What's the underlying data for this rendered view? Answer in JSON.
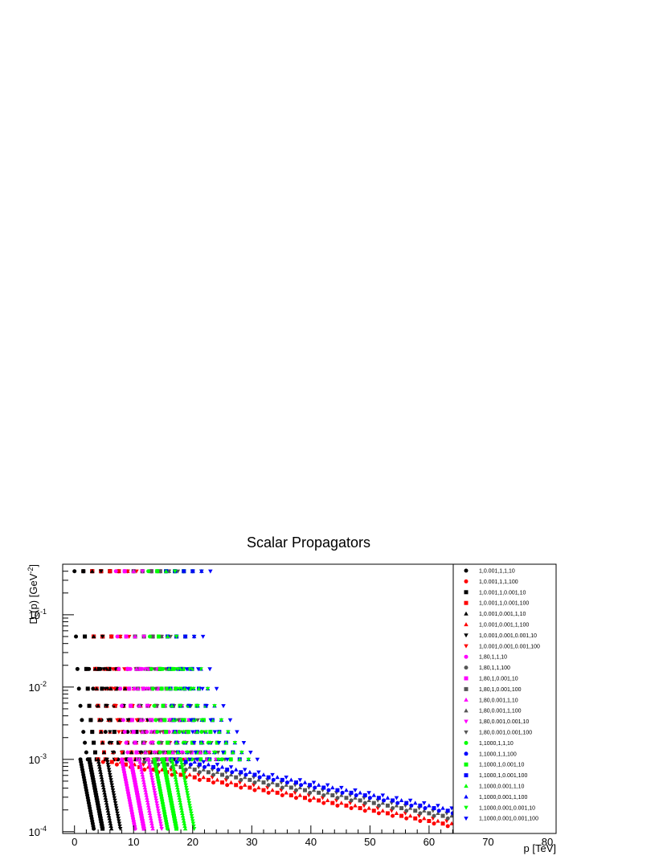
{
  "chart_data": {
    "type": "scatter",
    "title": "Scalar Propagators",
    "xlabel": "p [TeV]",
    "ylabel_main": "D",
    "ylabel_sub": "s",
    "ylabel_mid": "(p) [GeV",
    "ylabel_sup": "-2",
    "ylabel_end": "]",
    "xlim": [
      -2,
      81.5
    ],
    "ylim": [
      9.45e-05,
      0.5
    ],
    "yscale": "log",
    "grid": false,
    "legend_position": "right",
    "x_ticks": [
      "0",
      "10",
      "20",
      "30",
      "40",
      "50",
      "60",
      "70",
      "80"
    ],
    "y_ticks": [
      {
        "base": "10",
        "exp": "-4"
      },
      {
        "base": "10",
        "exp": "-3"
      },
      {
        "base": "10",
        "exp": "-2"
      },
      {
        "base": "10",
        "exp": "-1"
      }
    ],
    "colors": {
      "black": "#000000",
      "red": "#ff0000",
      "magenta": "#ff00ff",
      "gray": "#555555",
      "green": "#00ff00",
      "blue": "#0000ff"
    },
    "series": [
      {
        "name": "1,0.001,1,1,10",
        "color": "#000000",
        "marker": "circle",
        "a": 0.4,
        "x0": 0.0,
        "m": 10
      },
      {
        "name": "1,0.001,1,1,100",
        "color": "#ff0000",
        "marker": "circle",
        "a": 0.4,
        "x0": 1.5,
        "m": 100
      },
      {
        "name": "1,0.001,1,0.001,10",
        "color": "#000000",
        "marker": "square",
        "a": 0.4,
        "x0": 1.5,
        "m": 10
      },
      {
        "name": "1,0.001,1,0.001,100",
        "color": "#ff0000",
        "marker": "square",
        "a": 0.4,
        "x0": 3.0,
        "m": 100
      },
      {
        "name": "1,0.001,0.001,1,10",
        "color": "#000000",
        "marker": "triangle-up",
        "a": 0.4,
        "x0": 3.0,
        "m": 10
      },
      {
        "name": "1,0.001,0.001,1,100",
        "color": "#ff0000",
        "marker": "triangle-up",
        "a": 0.4,
        "x0": 4.5,
        "m": 100
      },
      {
        "name": "1,0.001,0.001,0.001,10",
        "color": "#000000",
        "marker": "triangle-down",
        "a": 0.4,
        "x0": 4.5,
        "m": 10
      },
      {
        "name": "1,0.001,0.001,0.001,100",
        "color": "#ff0000",
        "marker": "triangle-down",
        "a": 0.4,
        "x0": 6.0,
        "m": 100
      },
      {
        "name": "1,80,1,1,10",
        "color": "#ff00ff",
        "marker": "circle",
        "a": 0.4,
        "x0": 7.0,
        "m": 10
      },
      {
        "name": "1,80,1,1,100",
        "color": "#555555",
        "marker": "circle",
        "a": 0.4,
        "x0": 8.5,
        "m": 100
      },
      {
        "name": "1,80,1,0.001,10",
        "color": "#ff00ff",
        "marker": "square",
        "a": 0.4,
        "x0": 8.5,
        "m": 10
      },
      {
        "name": "1,80,1,0.001,100",
        "color": "#555555",
        "marker": "square",
        "a": 0.4,
        "x0": 10.0,
        "m": 100
      },
      {
        "name": "1,80,0.001,1,10",
        "color": "#ff00ff",
        "marker": "triangle-up",
        "a": 0.4,
        "x0": 10.0,
        "m": 10
      },
      {
        "name": "1,80,0.001,1,100",
        "color": "#555555",
        "marker": "triangle-up",
        "a": 0.4,
        "x0": 11.5,
        "m": 100
      },
      {
        "name": "1,80,0.001,0.001,10",
        "color": "#ff00ff",
        "marker": "triangle-down",
        "a": 0.4,
        "x0": 11.5,
        "m": 10
      },
      {
        "name": "1,80,0.001,0.001,100",
        "color": "#555555",
        "marker": "triangle-down",
        "a": 0.4,
        "x0": 13.0,
        "m": 100
      },
      {
        "name": "1,1000,1,1,10",
        "color": "#00ff00",
        "marker": "circle",
        "a": 0.4,
        "x0": 12.5,
        "m": 10
      },
      {
        "name": "1,1000,1,1,100",
        "color": "#0000ff",
        "marker": "circle",
        "a": 0.4,
        "x0": 14.0,
        "m": 100
      },
      {
        "name": "1,1000,1,0.001,10",
        "color": "#00ff00",
        "marker": "square",
        "a": 0.4,
        "x0": 14.0,
        "m": 10
      },
      {
        "name": "1,1000,1,0.001,100",
        "color": "#0000ff",
        "marker": "square",
        "a": 0.4,
        "x0": 15.5,
        "m": 100
      },
      {
        "name": "1,1000,0.001,1,10",
        "color": "#00ff00",
        "marker": "triangle-up",
        "a": 0.4,
        "x0": 15.5,
        "m": 10
      },
      {
        "name": "1,1000,0.001,1,100",
        "color": "#0000ff",
        "marker": "triangle-up",
        "a": 0.4,
        "x0": 17.0,
        "m": 100
      },
      {
        "name": "1,1000,0.001,0.001,10",
        "color": "#00ff00",
        "marker": "triangle-down",
        "a": 0.4,
        "x0": 17.0,
        "m": 10
      },
      {
        "name": "1,1000,0.001,0.001,100",
        "color": "#0000ff",
        "marker": "triangle-down",
        "a": 0.4,
        "x0": 18.5,
        "m": 100
      }
    ]
  }
}
